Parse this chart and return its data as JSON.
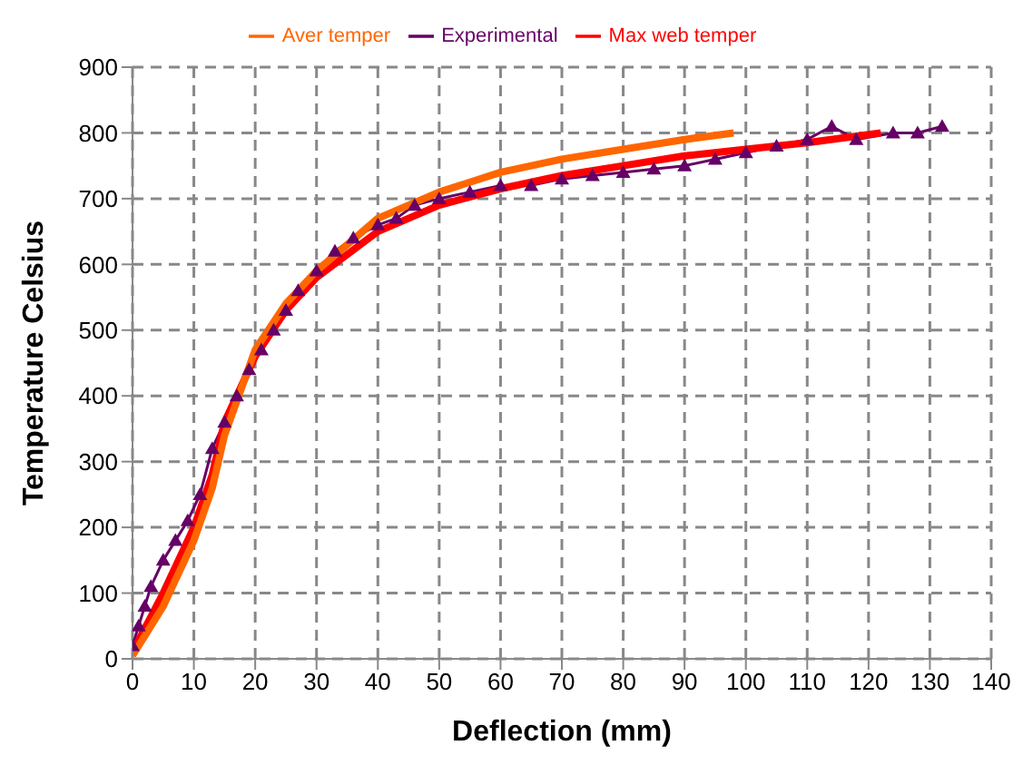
{
  "chart_data": {
    "type": "line",
    "xlabel": "Deflection (mm)",
    "ylabel": "Temperature Celsius",
    "xlim": [
      0,
      140
    ],
    "xticks": [
      0,
      10,
      20,
      30,
      40,
      50,
      60,
      70,
      80,
      90,
      100,
      110,
      120,
      130,
      140
    ],
    "ylim": [
      0,
      900
    ],
    "yticks": [
      0,
      100,
      200,
      300,
      400,
      500,
      600,
      700,
      800,
      900
    ],
    "grid": true,
    "legend": "top",
    "series": [
      {
        "name": "Experimental",
        "color": "#660066",
        "marker": "triangle",
        "x": [
          0,
          1,
          2,
          3,
          5,
          7,
          9,
          11,
          13,
          15,
          17,
          19,
          21,
          23,
          25,
          27,
          30,
          33,
          36,
          40,
          43,
          46,
          50,
          55,
          60,
          65,
          70,
          75,
          80,
          85,
          90,
          95,
          100,
          105,
          110,
          114,
          118,
          124,
          128,
          132
        ],
        "values": [
          20,
          50,
          80,
          110,
          150,
          180,
          210,
          250,
          320,
          360,
          400,
          440,
          470,
          500,
          530,
          560,
          590,
          620,
          640,
          660,
          670,
          690,
          700,
          710,
          720,
          720,
          730,
          735,
          740,
          745,
          750,
          760,
          770,
          780,
          790,
          810,
          790,
          800,
          800,
          810
        ]
      },
      {
        "name": "Max web temper",
        "color": "#ff0000",
        "marker": "none",
        "x": [
          0,
          5,
          10,
          13,
          15,
          20,
          25,
          30,
          40,
          50,
          60,
          70,
          80,
          90,
          100,
          110,
          122
        ],
        "values": [
          10,
          100,
          200,
          280,
          360,
          460,
          530,
          580,
          650,
          690,
          715,
          735,
          750,
          765,
          775,
          785,
          800
        ]
      },
      {
        "name": "Aver temper",
        "color": "#ff6600",
        "marker": "none",
        "x": [
          0,
          5,
          10,
          13,
          15,
          20,
          25,
          30,
          35,
          40,
          50,
          60,
          70,
          80,
          90,
          98
        ],
        "values": [
          5,
          80,
          180,
          260,
          340,
          470,
          540,
          590,
          630,
          670,
          710,
          740,
          760,
          775,
          790,
          800
        ]
      }
    ]
  }
}
